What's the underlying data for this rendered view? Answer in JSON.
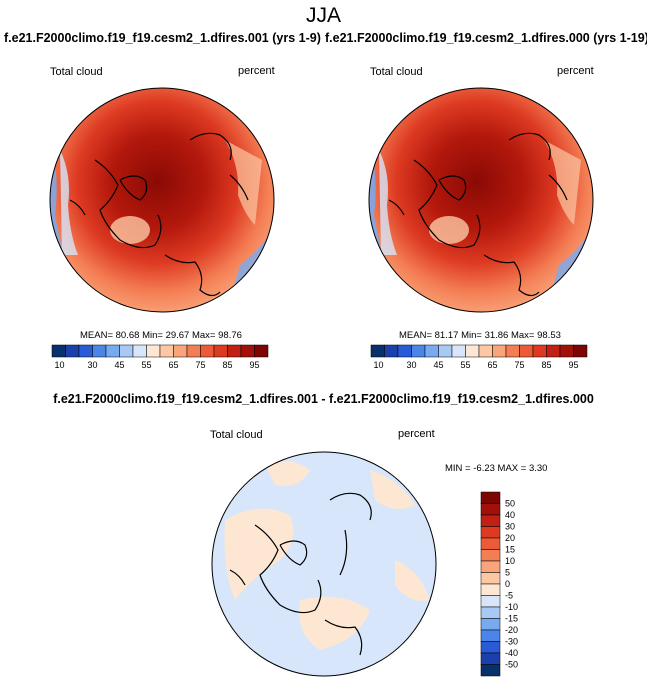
{
  "season": "JJA",
  "colors": {
    "hbar": [
      "#08306b",
      "#1c3fae",
      "#2a5bd7",
      "#4b85e8",
      "#78aaf0",
      "#a9c9f5",
      "#d7e6fa",
      "#fde7d3",
      "#fcc8a4",
      "#f9a47a",
      "#f47e54",
      "#ec5a37",
      "#dd3a22",
      "#c12114",
      "#a11009",
      "#7d0503"
    ],
    "vbar": [
      "#08306b",
      "#1c3fae",
      "#2a5bd7",
      "#4b85e8",
      "#78aaf0",
      "#a9c9f5",
      "#d7e6fa",
      "#fde7d3",
      "#fcc8a4",
      "#f9a47a",
      "#f47e54",
      "#ec5a37",
      "#dd3a22",
      "#c12114",
      "#a11009",
      "#7d0503"
    ]
  },
  "chart_data": [
    {
      "type": "heatmap",
      "title": "f.e21.F2000climo.f19_f19.cesm2_1.dfires.001 (yrs 1-9)",
      "variable": "Total cloud",
      "units": "percent",
      "projection": "north polar stereographic",
      "stats": {
        "mean": "80.68",
        "min": "29.67",
        "max": "98.76"
      },
      "colorbar_ticks": [
        "10",
        "30",
        "45",
        "55",
        "65",
        "75",
        "85",
        "95"
      ]
    },
    {
      "type": "heatmap",
      "title": "f.e21.F2000climo.f19_f19.cesm2_1.dfires.000 (yrs 1-19)",
      "variable": "Total cloud",
      "units": "percent",
      "projection": "north polar stereographic",
      "stats": {
        "mean": "81.17",
        "min": "31.86",
        "max": "98.53"
      },
      "colorbar_ticks": [
        "10",
        "30",
        "45",
        "55",
        "65",
        "75",
        "85",
        "95"
      ]
    },
    {
      "type": "heatmap",
      "title": "f.e21.F2000climo.f19_f19.cesm2_1.dfires.001 - f.e21.F2000climo.f19_f19.cesm2_1.dfires.000",
      "variable": "Total cloud",
      "units": "percent",
      "projection": "north polar stereographic",
      "stats": {
        "min": "-6.23",
        "max": "3.30"
      },
      "colorbar_ticks": [
        "50",
        "40",
        "30",
        "20",
        "15",
        "10",
        "5",
        "0",
        "-5",
        "-10",
        "-15",
        "-20",
        "-30",
        "-40",
        "-50"
      ]
    }
  ],
  "labels": {
    "mean": "MEAN=",
    "min": "Min=",
    "max": "Max=",
    "diff_min": "MIN =",
    "diff_max": "MAX ="
  }
}
